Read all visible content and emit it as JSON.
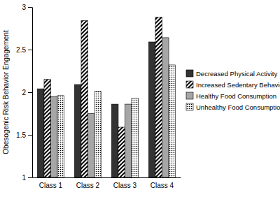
{
  "chart_data": {
    "type": "bar",
    "y_label": "Obesogenic Risk Behavior Engagement",
    "categories": [
      "Class 1",
      "Class 2",
      "Class 3",
      "Class 4"
    ],
    "series": [
      {
        "name": "Decreased Physical Activity",
        "color": "#333333",
        "values": [
          2.04,
          2.09,
          1.86,
          2.59
        ]
      },
      {
        "name": "Increased Sedentary Behavior",
        "color": "#ffffff",
        "values": [
          2.15,
          2.84,
          1.59,
          2.88
        ]
      },
      {
        "name": "Healthy Food Consumption",
        "color": "#a6a6a6",
        "values": [
          1.95,
          1.75,
          1.86,
          2.64
        ]
      },
      {
        "name": "Unhealthy Food Consumption",
        "color": "#ffffff",
        "values": [
          1.96,
          2.01,
          1.93,
          2.32
        ]
      }
    ],
    "ylim": [
      1,
      3
    ],
    "yticks": [
      1,
      1.5,
      2,
      2.5,
      3
    ],
    "grid": false,
    "legend": "right"
  }
}
